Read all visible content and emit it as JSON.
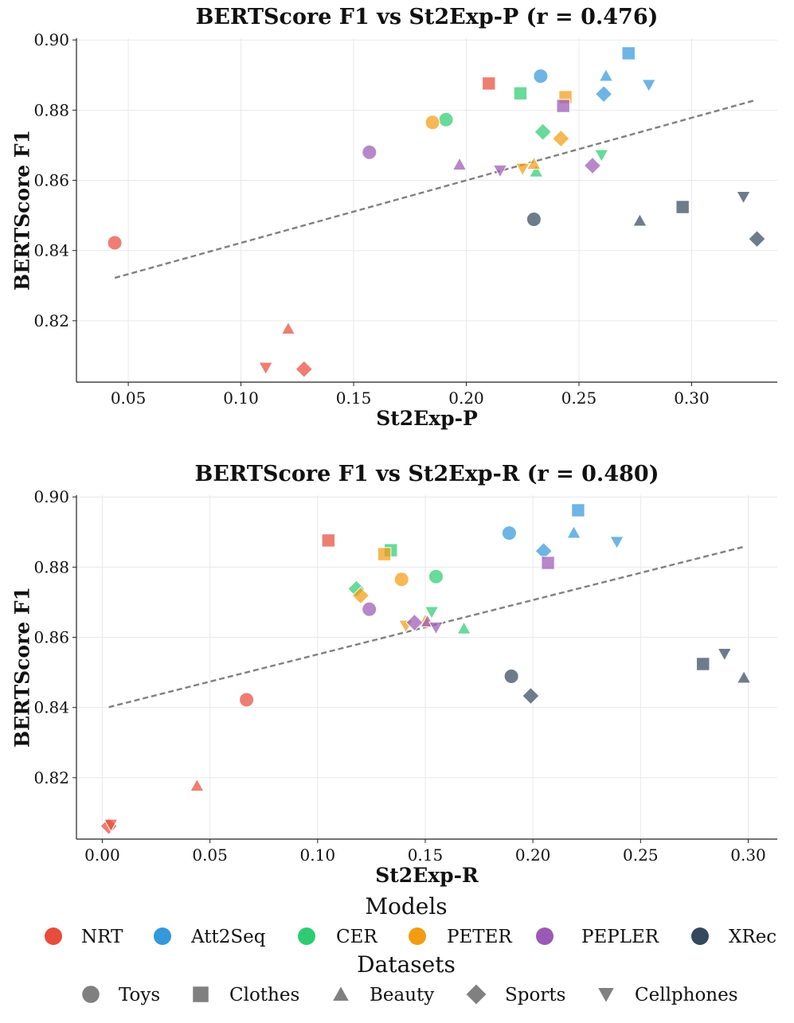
{
  "models": [
    {
      "name": "NRT",
      "color": "#e74c3c"
    },
    {
      "name": "Att2Seq",
      "color": "#3498db"
    },
    {
      "name": "CER",
      "color": "#2ecc71"
    },
    {
      "name": "PETER",
      "color": "#f39c12"
    },
    {
      "name": "PEPLER",
      "color": "#9b59b6"
    },
    {
      "name": "XRec",
      "color": "#34495e"
    }
  ],
  "datasets": [
    {
      "name": "Toys",
      "marker": "circle"
    },
    {
      "name": "Clothes",
      "marker": "square"
    },
    {
      "name": "Beauty",
      "marker": "triangle-up"
    },
    {
      "name": "Sports",
      "marker": "diamond"
    },
    {
      "name": "Cellphones",
      "marker": "triangle-down"
    }
  ],
  "legend": {
    "models_title": "Models",
    "datasets_title": "Datasets",
    "marker_color": "#808080"
  },
  "chart_data": [
    {
      "type": "scatter",
      "title": "BERTScore F1 vs St2Exp-P (r = 0.476)",
      "xlabel": "St2Exp-P",
      "ylabel": "BERTScore F1",
      "xlim": [
        0.027,
        0.338
      ],
      "ylim": [
        0.8025,
        0.9005
      ],
      "xticks": [
        0.05,
        0.1,
        0.15,
        0.2,
        0.25,
        0.3
      ],
      "xtick_labels": [
        "0.05",
        "0.10",
        "0.15",
        "0.20",
        "0.25",
        "0.30"
      ],
      "yticks": [
        0.82,
        0.84,
        0.86,
        0.88,
        0.9
      ],
      "ytick_labels": [
        "0.82",
        "0.84",
        "0.86",
        "0.88",
        "0.90"
      ],
      "grid": true,
      "trend_line": {
        "x": [
          0.044,
          0.328
        ],
        "y": [
          0.8322,
          0.8828
        ]
      },
      "points": [
        {
          "model": "NRT",
          "dataset": "Toys",
          "x": 0.044,
          "y": 0.8422
        },
        {
          "model": "NRT",
          "dataset": "Clothes",
          "x": 0.21,
          "y": 0.8876
        },
        {
          "model": "NRT",
          "dataset": "Beauty",
          "x": 0.121,
          "y": 0.8177
        },
        {
          "model": "NRT",
          "dataset": "Sports",
          "x": 0.128,
          "y": 0.8062
        },
        {
          "model": "NRT",
          "dataset": "Cellphones",
          "x": 0.111,
          "y": 0.8066
        },
        {
          "model": "Att2Seq",
          "dataset": "Toys",
          "x": 0.233,
          "y": 0.8897
        },
        {
          "model": "Att2Seq",
          "dataset": "Clothes",
          "x": 0.272,
          "y": 0.8962
        },
        {
          "model": "Att2Seq",
          "dataset": "Beauty",
          "x": 0.262,
          "y": 0.8898
        },
        {
          "model": "Att2Seq",
          "dataset": "Sports",
          "x": 0.261,
          "y": 0.8846
        },
        {
          "model": "Att2Seq",
          "dataset": "Cellphones",
          "x": 0.281,
          "y": 0.8872
        },
        {
          "model": "CER",
          "dataset": "Toys",
          "x": 0.191,
          "y": 0.8773
        },
        {
          "model": "CER",
          "dataset": "Clothes",
          "x": 0.224,
          "y": 0.8848
        },
        {
          "model": "CER",
          "dataset": "Beauty",
          "x": 0.231,
          "y": 0.8625
        },
        {
          "model": "CER",
          "dataset": "Sports",
          "x": 0.234,
          "y": 0.8738
        },
        {
          "model": "CER",
          "dataset": "Cellphones",
          "x": 0.26,
          "y": 0.8672
        },
        {
          "model": "PETER",
          "dataset": "Toys",
          "x": 0.185,
          "y": 0.8765
        },
        {
          "model": "PETER",
          "dataset": "Clothes",
          "x": 0.244,
          "y": 0.8837
        },
        {
          "model": "PETER",
          "dataset": "Beauty",
          "x": 0.23,
          "y": 0.8647
        },
        {
          "model": "PETER",
          "dataset": "Sports",
          "x": 0.242,
          "y": 0.8719
        },
        {
          "model": "PETER",
          "dataset": "Cellphones",
          "x": 0.225,
          "y": 0.8633
        },
        {
          "model": "PEPLER",
          "dataset": "Toys",
          "x": 0.157,
          "y": 0.868
        },
        {
          "model": "PEPLER",
          "dataset": "Clothes",
          "x": 0.243,
          "y": 0.8812
        },
        {
          "model": "PEPLER",
          "dataset": "Beauty",
          "x": 0.197,
          "y": 0.8645
        },
        {
          "model": "PEPLER",
          "dataset": "Sports",
          "x": 0.256,
          "y": 0.8642
        },
        {
          "model": "PEPLER",
          "dataset": "Cellphones",
          "x": 0.215,
          "y": 0.8628
        },
        {
          "model": "XRec",
          "dataset": "Toys",
          "x": 0.23,
          "y": 0.8489
        },
        {
          "model": "XRec",
          "dataset": "Clothes",
          "x": 0.296,
          "y": 0.8524
        },
        {
          "model": "XRec",
          "dataset": "Beauty",
          "x": 0.277,
          "y": 0.8485
        },
        {
          "model": "XRec",
          "dataset": "Sports",
          "x": 0.329,
          "y": 0.8433
        },
        {
          "model": "XRec",
          "dataset": "Cellphones",
          "x": 0.323,
          "y": 0.8553
        }
      ]
    },
    {
      "type": "scatter",
      "title": "BERTScore F1 vs St2Exp-R (r = 0.480)",
      "xlabel": "St2Exp-R",
      "ylabel": "BERTScore F1",
      "xlim": [
        -0.012,
        0.3135
      ],
      "ylim": [
        0.8025,
        0.9005
      ],
      "xticks": [
        0.0,
        0.05,
        0.1,
        0.15,
        0.2,
        0.25,
        0.3
      ],
      "xtick_labels": [
        "0.00",
        "0.05",
        "0.10",
        "0.15",
        "0.20",
        "0.25",
        "0.30"
      ],
      "yticks": [
        0.82,
        0.84,
        0.86,
        0.88,
        0.9
      ],
      "ytick_labels": [
        "0.82",
        "0.84",
        "0.86",
        "0.88",
        "0.90"
      ],
      "grid": true,
      "trend_line": {
        "x": [
          0.003,
          0.298
        ],
        "y": [
          0.8401,
          0.8858
        ]
      },
      "points": [
        {
          "model": "NRT",
          "dataset": "Toys",
          "x": 0.067,
          "y": 0.8422
        },
        {
          "model": "NRT",
          "dataset": "Clothes",
          "x": 0.105,
          "y": 0.8876
        },
        {
          "model": "NRT",
          "dataset": "Beauty",
          "x": 0.044,
          "y": 0.8177
        },
        {
          "model": "NRT",
          "dataset": "Sports",
          "x": 0.003,
          "y": 0.8062
        },
        {
          "model": "NRT",
          "dataset": "Cellphones",
          "x": 0.004,
          "y": 0.8066
        },
        {
          "model": "Att2Seq",
          "dataset": "Toys",
          "x": 0.189,
          "y": 0.8897
        },
        {
          "model": "Att2Seq",
          "dataset": "Clothes",
          "x": 0.221,
          "y": 0.8962
        },
        {
          "model": "Att2Seq",
          "dataset": "Beauty",
          "x": 0.219,
          "y": 0.8898
        },
        {
          "model": "Att2Seq",
          "dataset": "Sports",
          "x": 0.205,
          "y": 0.8846
        },
        {
          "model": "Att2Seq",
          "dataset": "Cellphones",
          "x": 0.239,
          "y": 0.8872
        },
        {
          "model": "CER",
          "dataset": "Toys",
          "x": 0.155,
          "y": 0.8773
        },
        {
          "model": "CER",
          "dataset": "Clothes",
          "x": 0.134,
          "y": 0.8848
        },
        {
          "model": "CER",
          "dataset": "Beauty",
          "x": 0.168,
          "y": 0.8625
        },
        {
          "model": "CER",
          "dataset": "Sports",
          "x": 0.118,
          "y": 0.8738
        },
        {
          "model": "CER",
          "dataset": "Cellphones",
          "x": 0.153,
          "y": 0.8672
        },
        {
          "model": "PETER",
          "dataset": "Toys",
          "x": 0.139,
          "y": 0.8765
        },
        {
          "model": "PETER",
          "dataset": "Clothes",
          "x": 0.131,
          "y": 0.8837
        },
        {
          "model": "PETER",
          "dataset": "Beauty",
          "x": 0.15,
          "y": 0.8647
        },
        {
          "model": "PETER",
          "dataset": "Sports",
          "x": 0.12,
          "y": 0.8719
        },
        {
          "model": "PETER",
          "dataset": "Cellphones",
          "x": 0.141,
          "y": 0.8633
        },
        {
          "model": "PEPLER",
          "dataset": "Toys",
          "x": 0.124,
          "y": 0.868
        },
        {
          "model": "PEPLER",
          "dataset": "Clothes",
          "x": 0.207,
          "y": 0.8812
        },
        {
          "model": "PEPLER",
          "dataset": "Beauty",
          "x": 0.151,
          "y": 0.8645
        },
        {
          "model": "PEPLER",
          "dataset": "Sports",
          "x": 0.145,
          "y": 0.8642
        },
        {
          "model": "PEPLER",
          "dataset": "Cellphones",
          "x": 0.155,
          "y": 0.8628
        },
        {
          "model": "XRec",
          "dataset": "Toys",
          "x": 0.19,
          "y": 0.8489
        },
        {
          "model": "XRec",
          "dataset": "Clothes",
          "x": 0.279,
          "y": 0.8524
        },
        {
          "model": "XRec",
          "dataset": "Beauty",
          "x": 0.298,
          "y": 0.8485
        },
        {
          "model": "XRec",
          "dataset": "Sports",
          "x": 0.199,
          "y": 0.8433
        },
        {
          "model": "XRec",
          "dataset": "Cellphones",
          "x": 0.289,
          "y": 0.8553
        }
      ]
    }
  ]
}
